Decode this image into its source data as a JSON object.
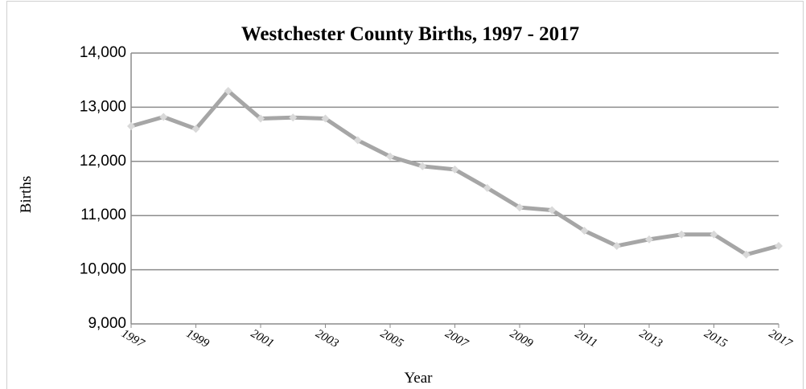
{
  "chart_data": {
    "type": "line",
    "title": "Westchester County Births, 1997 - 2017",
    "x_label": "Year",
    "y_label": "Births",
    "x": [
      1997,
      1998,
      1999,
      2000,
      2001,
      2002,
      2003,
      2004,
      2005,
      2006,
      2007,
      2008,
      2009,
      2010,
      2011,
      2012,
      2013,
      2014,
      2015,
      2016,
      2017
    ],
    "series": [
      {
        "name": "Births",
        "color": "#a6a6a6",
        "marker_color": "#d9d9d9",
        "values": [
          12650,
          12820,
          12600,
          13300,
          12790,
          12810,
          12790,
          12390,
          12090,
          11910,
          11850,
          11510,
          11150,
          11100,
          10720,
          10440,
          10560,
          10650,
          10650,
          10280,
          10440
        ]
      }
    ],
    "xlim": [
      1997,
      2017
    ],
    "xticks": [
      1997,
      1999,
      2001,
      2003,
      2005,
      2007,
      2009,
      2011,
      2013,
      2015,
      2017
    ],
    "ylim": [
      9000,
      14000
    ],
    "yticks": [
      {
        "value": 9000,
        "label": "9,000"
      },
      {
        "value": 10000,
        "label": "10,000"
      },
      {
        "value": 11000,
        "label": "11,000"
      },
      {
        "value": 12000,
        "label": "12,000"
      },
      {
        "value": 13000,
        "label": "13,000"
      },
      {
        "value": 14000,
        "label": "14,000"
      }
    ],
    "grid": true
  }
}
